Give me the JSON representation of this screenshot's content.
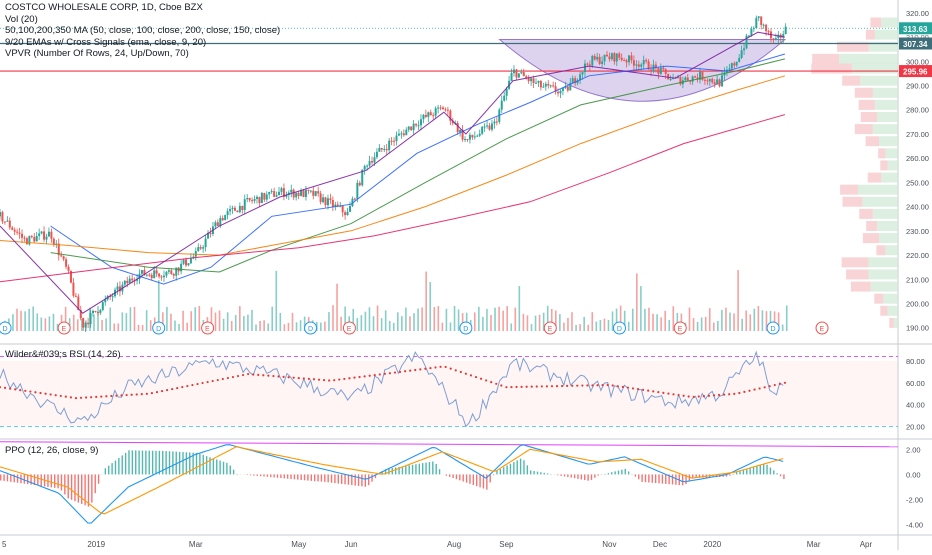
{
  "header": {
    "title": "COSTCO WHOLESALE CORP, 1D, Cboe BZX",
    "indicators": [
      "Vol (20)",
      "50,100,200,350 MA (50, close, 100, close, 200, close, 150, close)",
      "9/20 EMAs w/ Cross Signals (ema, close, 9, 20)",
      "VPVR (Number Of Rows, 24, Up/Down, 70)"
    ]
  },
  "rsi_pane": {
    "title": "Wilder&#039;s RSI (14, 26)"
  },
  "ppo_pane": {
    "title": "PPO (12, 26, close, 9)"
  },
  "colors": {
    "up": "#26a69a",
    "down": "#ef5350",
    "ma50": "#2962ff",
    "ma100": "#388e3c",
    "ma200": "#f57c00",
    "ma350": "#e91e63",
    "ema9": "#7b1fa2",
    "cup": "#b39ddb",
    "rsi_line": "#7e9fd1",
    "rsi_smooth": "#e53935",
    "ppo_line": "#2196f3",
    "ppo_signal": "#ff9800",
    "price_tag": "#26a69a",
    "red_tag": "#f23645",
    "teal_tag": "#3d6e7a"
  },
  "price_axis": {
    "ticks": [
      "320.00",
      "310.00",
      "300.00",
      "290.00",
      "280.00",
      "270.00",
      "260.00",
      "250.00",
      "240.00",
      "230.00",
      "220.00",
      "210.00",
      "200.00",
      "190.00"
    ]
  },
  "price_tags": {
    "last": "313.63",
    "line": "307.34",
    "red": "295.96",
    "hidden": "310.00"
  },
  "rsi_axis": {
    "ticks": [
      "80.00",
      "60.00",
      "40.00",
      "20.00"
    ]
  },
  "ppo_axis": {
    "ticks": [
      "2.00",
      "0.00",
      "-2.00",
      "-4.00"
    ]
  },
  "time_axis": {
    "labels": [
      "5",
      "2019",
      "Mar",
      "May",
      "Jun",
      "Aug",
      "Sep",
      "Nov",
      "Dec",
      "2020",
      "Mar",
      "Apr"
    ]
  },
  "events": [
    "D",
    "E",
    "D",
    "E",
    "D",
    "E",
    "D",
    "E",
    "D",
    "E",
    "D",
    "E"
  ],
  "chart_data": [
    {
      "type": "line",
      "title": "COSTCO WHOLESALE CORP, 1D, Cboe BZX",
      "ylim": [
        187,
        322
      ],
      "x_range": [
        "2018-11-05",
        "2020-04-20"
      ],
      "series": [
        {
          "name": "close",
          "points": [
            [
              "2018-11-05",
              236
            ],
            [
              "2018-11-20",
              226
            ],
            [
              "2018-12-05",
              229
            ],
            [
              "2018-12-15",
              213
            ],
            [
              "2018-12-24",
              191
            ],
            [
              "2019-01-05",
              200
            ],
            [
              "2019-01-25",
              212
            ],
            [
              "2019-02-15",
              213
            ],
            [
              "2019-03-01",
              220
            ],
            [
              "2019-03-15",
              235
            ],
            [
              "2019-04-01",
              242
            ],
            [
              "2019-04-20",
              246
            ],
            [
              "2019-05-10",
              245
            ],
            [
              "2019-05-30",
              237
            ],
            [
              "2019-06-10",
              258
            ],
            [
              "2019-06-25",
              267
            ],
            [
              "2019-07-10",
              275
            ],
            [
              "2019-07-26",
              281
            ],
            [
              "2019-08-08",
              267
            ],
            [
              "2019-08-25",
              274
            ],
            [
              "2019-09-05",
              296
            ],
            [
              "2019-09-20",
              290
            ],
            [
              "2019-10-05",
              287
            ],
            [
              "2019-10-20",
              300
            ],
            [
              "2019-11-05",
              302
            ],
            [
              "2019-11-25",
              298
            ],
            [
              "2019-12-10",
              292
            ],
            [
              "2019-12-25",
              294
            ],
            [
              "2020-01-05",
              291
            ],
            [
              "2020-01-15",
              300
            ],
            [
              "2020-01-28",
              318
            ],
            [
              "2020-02-07",
              307
            ],
            [
              "2020-02-13",
              313
            ]
          ]
        },
        {
          "name": "MA 50",
          "points": [
            [
              "2018-12-05",
              232
            ],
            [
              "2019-01-10",
              215
            ],
            [
              "2019-02-10",
              208
            ],
            [
              "2019-03-10",
              215
            ],
            [
              "2019-04-15",
              236
            ],
            [
              "2019-06-01",
              241
            ],
            [
              "2019-07-10",
              262
            ],
            [
              "2019-08-15",
              274
            ],
            [
              "2019-09-15",
              283
            ],
            [
              "2019-10-20",
              294
            ],
            [
              "2019-12-05",
              298
            ],
            [
              "2020-01-10",
              296
            ],
            [
              "2020-02-13",
              303
            ]
          ]
        },
        {
          "name": "MA 100",
          "points": [
            [
              "2018-12-05",
              221
            ],
            [
              "2019-02-01",
              215
            ],
            [
              "2019-03-15",
              213
            ],
            [
              "2019-04-15",
              222
            ],
            [
              "2019-06-01",
              233
            ],
            [
              "2019-07-15",
              250
            ],
            [
              "2019-09-01",
              268
            ],
            [
              "2019-10-15",
              282
            ],
            [
              "2019-12-05",
              290
            ],
            [
              "2020-01-15",
              296
            ],
            [
              "2020-02-13",
              301
            ]
          ]
        },
        {
          "name": "MA 200",
          "points": [
            [
              "2018-11-05",
              226
            ],
            [
              "2018-12-15",
              224
            ],
            [
              "2019-02-01",
              221
            ],
            [
              "2019-03-15",
              220
            ],
            [
              "2019-04-15",
              224
            ],
            [
              "2019-06-01",
              230
            ],
            [
              "2019-07-15",
              240
            ],
            [
              "2019-09-01",
              253
            ],
            [
              "2019-10-15",
              266
            ],
            [
              "2019-12-05",
              279
            ],
            [
              "2020-01-15",
              288
            ],
            [
              "2020-02-13",
              294
            ]
          ]
        },
        {
          "name": "MA 350",
          "points": [
            [
              "2018-11-05",
              209
            ],
            [
              "2019-01-01",
              214
            ],
            [
              "2019-03-01",
              219
            ],
            [
              "2019-05-01",
              223
            ],
            [
              "2019-06-15",
              228
            ],
            [
              "2019-08-01",
              235
            ],
            [
              "2019-09-15",
              242
            ],
            [
              "2019-11-01",
              254
            ],
            [
              "2019-12-15",
              266
            ],
            [
              "2020-02-13",
              278
            ]
          ]
        },
        {
          "name": "EMA 9",
          "points": [
            [
              "2018-11-05",
              232
            ],
            [
              "2018-12-24",
              196
            ],
            [
              "2019-01-25",
              210
            ],
            [
              "2019-03-15",
              232
            ],
            [
              "2019-04-20",
              244
            ],
            [
              "2019-06-10",
              255
            ],
            [
              "2019-07-26",
              279
            ],
            [
              "2019-08-08",
              270
            ],
            [
              "2019-09-05",
              292
            ],
            [
              "2019-10-20",
              298
            ],
            [
              "2019-12-10",
              293
            ],
            [
              "2020-01-28",
              312
            ],
            [
              "2020-02-13",
              310
            ]
          ]
        }
      ]
    },
    {
      "type": "line",
      "title": "Wilder&#039;s RSI (14, 26)",
      "ylim": [
        15,
        90
      ],
      "series": [
        {
          "name": "RSI",
          "points": [
            [
              "2018-11-05",
              68
            ],
            [
              "2018-12-05",
              38
            ],
            [
              "2018-12-24",
              24
            ],
            [
              "2019-01-20",
              56
            ],
            [
              "2019-03-10",
              80
            ],
            [
              "2019-04-20",
              66
            ],
            [
              "2019-06-01",
              45
            ],
            [
              "2019-07-10",
              85
            ],
            [
              "2019-08-10",
              22
            ],
            [
              "2019-09-05",
              78
            ],
            [
              "2019-10-20",
              58
            ],
            [
              "2019-12-10",
              42
            ],
            [
              "2020-01-05",
              50
            ],
            [
              "2020-01-28",
              86
            ],
            [
              "2020-02-07",
              42
            ],
            [
              "2020-02-13",
              68
            ]
          ]
        },
        {
          "name": "RSI smoothed",
          "points": [
            [
              "2018-11-05",
              56
            ],
            [
              "2018-12-20",
              46
            ],
            [
              "2019-02-01",
              50
            ],
            [
              "2019-04-01",
              68
            ],
            [
              "2019-05-20",
              62
            ],
            [
              "2019-07-26",
              75
            ],
            [
              "2019-09-01",
              56
            ],
            [
              "2019-11-01",
              58
            ],
            [
              "2019-12-20",
              47
            ],
            [
              "2020-01-15",
              50
            ],
            [
              "2020-02-13",
              60
            ]
          ]
        }
      ]
    },
    {
      "type": "bar",
      "title": "PPO (12, 26, close, 9)",
      "ylim": [
        -4.5,
        2.5
      ],
      "series": [
        {
          "name": "PPO",
          "points": [
            [
              "2018-11-05",
              0.3
            ],
            [
              "2018-12-10",
              -1.5
            ],
            [
              "2018-12-28",
              -4.0
            ],
            [
              "2019-01-20",
              -1.0
            ],
            [
              "2019-03-01",
              1.6
            ],
            [
              "2019-03-20",
              2.4
            ],
            [
              "2019-05-10",
              0.6
            ],
            [
              "2019-06-10",
              -0.4
            ],
            [
              "2019-07-20",
              2.2
            ],
            [
              "2019-08-20",
              -0.3
            ],
            [
              "2019-09-10",
              2.4
            ],
            [
              "2019-10-20",
              0.8
            ],
            [
              "2019-11-10",
              1.4
            ],
            [
              "2019-12-15",
              -0.6
            ],
            [
              "2020-01-10",
              0.0
            ],
            [
              "2020-02-01",
              1.4
            ],
            [
              "2020-02-13",
              1.0
            ]
          ]
        },
        {
          "name": "Signal",
          "points": [
            [
              "2018-11-05",
              0.6
            ],
            [
              "2018-12-15",
              -1.0
            ],
            [
              "2019-01-05",
              -3.2
            ],
            [
              "2019-02-10",
              -0.8
            ],
            [
              "2019-03-25",
              2.2
            ],
            [
              "2019-05-15",
              0.8
            ],
            [
              "2019-06-20",
              0.0
            ],
            [
              "2019-07-25",
              1.8
            ],
            [
              "2019-08-25",
              0.2
            ],
            [
              "2019-09-15",
              2.0
            ],
            [
              "2019-10-25",
              1.0
            ],
            [
              "2019-11-20",
              1.2
            ],
            [
              "2019-12-20",
              -0.3
            ],
            [
              "2020-01-15",
              0.2
            ],
            [
              "2020-02-13",
              1.3
            ]
          ]
        }
      ]
    }
  ]
}
